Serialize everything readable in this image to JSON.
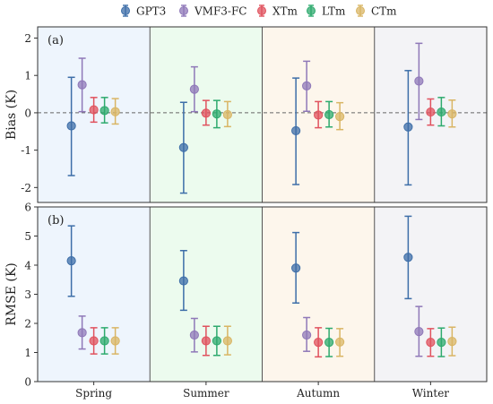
{
  "legend": {
    "placement": "top-center",
    "entries": [
      {
        "name": "GPT3",
        "color": "#3d6ea8"
      },
      {
        "name": "VMF3-FC",
        "color": "#8f78b8"
      },
      {
        "name": "XTm",
        "color": "#e0525e"
      },
      {
        "name": "LTm",
        "color": "#2eaa6e"
      },
      {
        "name": "CTm",
        "color": "#d9b564"
      }
    ]
  },
  "season_backgrounds": [
    "#eef5fd",
    "#ecfbee",
    "#fdf6ec",
    "#f3f3f6"
  ],
  "chart_data": [
    {
      "type": "scatter",
      "panel_label": "(a)",
      "ylabel": "Bias (K)",
      "ylim": [
        -2.4,
        2.3
      ],
      "yticks": [
        -2,
        -1,
        0,
        1,
        2
      ],
      "zero_line": true,
      "categories": [
        "Spring",
        "Summer",
        "Autumn",
        "Winter"
      ],
      "series": [
        {
          "name": "GPT3",
          "values": [
            -0.35,
            -0.93,
            -0.48,
            -0.38
          ],
          "lower": [
            -1.68,
            -2.15,
            -1.92,
            -1.93
          ],
          "upper": [
            0.95,
            0.28,
            0.93,
            1.13
          ]
        },
        {
          "name": "VMF3-FC",
          "values": [
            0.75,
            0.63,
            0.72,
            0.85
          ],
          "lower": [
            0.03,
            0.03,
            0.04,
            -0.18
          ],
          "upper": [
            1.46,
            1.23,
            1.38,
            1.86
          ]
        },
        {
          "name": "XTm",
          "values": [
            0.08,
            -0.01,
            -0.06,
            0.02
          ],
          "lower": [
            -0.25,
            -0.33,
            -0.4,
            -0.33
          ],
          "upper": [
            0.41,
            0.33,
            0.3,
            0.37
          ]
        },
        {
          "name": "LTm",
          "values": [
            0.06,
            -0.03,
            -0.05,
            0.02
          ],
          "lower": [
            -0.27,
            -0.4,
            -0.38,
            -0.35
          ],
          "upper": [
            0.41,
            0.33,
            0.3,
            0.41
          ]
        },
        {
          "name": "CTm",
          "values": [
            0.03,
            -0.05,
            -0.1,
            -0.03
          ],
          "lower": [
            -0.3,
            -0.37,
            -0.45,
            -0.38
          ],
          "upper": [
            0.38,
            0.3,
            0.27,
            0.34
          ]
        }
      ]
    },
    {
      "type": "scatter",
      "panel_label": "(b)",
      "ylabel": "RMSE (K)",
      "ylim": [
        0,
        6
      ],
      "yticks": [
        0,
        1,
        2,
        3,
        4,
        5,
        6
      ],
      "zero_line": false,
      "xlabel": "",
      "categories": [
        "Spring",
        "Summer",
        "Autumn",
        "Winter"
      ],
      "series": [
        {
          "name": "GPT3",
          "values": [
            4.15,
            3.46,
            3.9,
            4.27
          ],
          "lower": [
            2.93,
            2.45,
            2.7,
            2.85
          ],
          "upper": [
            5.35,
            4.5,
            5.12,
            5.68
          ]
        },
        {
          "name": "VMF3-FC",
          "values": [
            1.68,
            1.6,
            1.6,
            1.72
          ],
          "lower": [
            1.12,
            1.02,
            1.04,
            0.87
          ],
          "upper": [
            2.25,
            2.17,
            2.2,
            2.58
          ]
        },
        {
          "name": "XTm",
          "values": [
            1.4,
            1.4,
            1.35,
            1.35
          ],
          "lower": [
            0.95,
            0.9,
            0.85,
            0.87
          ],
          "upper": [
            1.85,
            1.9,
            1.85,
            1.82
          ]
        },
        {
          "name": "LTm",
          "values": [
            1.4,
            1.4,
            1.35,
            1.35
          ],
          "lower": [
            0.95,
            0.9,
            0.86,
            0.86
          ],
          "upper": [
            1.85,
            1.9,
            1.83,
            1.84
          ]
        },
        {
          "name": "CTm",
          "values": [
            1.4,
            1.4,
            1.36,
            1.38
          ],
          "lower": [
            0.95,
            0.92,
            0.87,
            0.89
          ],
          "upper": [
            1.85,
            1.9,
            1.82,
            1.87
          ]
        }
      ]
    }
  ]
}
